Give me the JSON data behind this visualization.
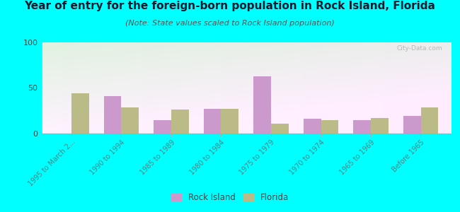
{
  "title": "Year of entry for the foreign-born population in Rock Island, Florida",
  "subtitle": "(Note: State values scaled to Rock Island population)",
  "categories": [
    "1995 to March 2...",
    "1990 to 1994",
    "1985 to 1989",
    "1980 to 1984",
    "1975 to 1979",
    "1970 to 1974",
    "1965 to 1969",
    "Before 1965"
  ],
  "rock_island": [
    0,
    41,
    15,
    27,
    63,
    16,
    15,
    19
  ],
  "florida": [
    44,
    29,
    26,
    27,
    11,
    15,
    17,
    29
  ],
  "rock_island_color": "#cc99cc",
  "florida_color": "#bbbb88",
  "background_color": "#00ffff",
  "ylim": [
    0,
    100
  ],
  "yticks": [
    0,
    50,
    100
  ],
  "bar_width": 0.35,
  "title_fontsize": 11,
  "subtitle_fontsize": 8,
  "tick_label_fontsize": 7,
  "legend_fontsize": 8.5,
  "watermark": "City-Data.com"
}
